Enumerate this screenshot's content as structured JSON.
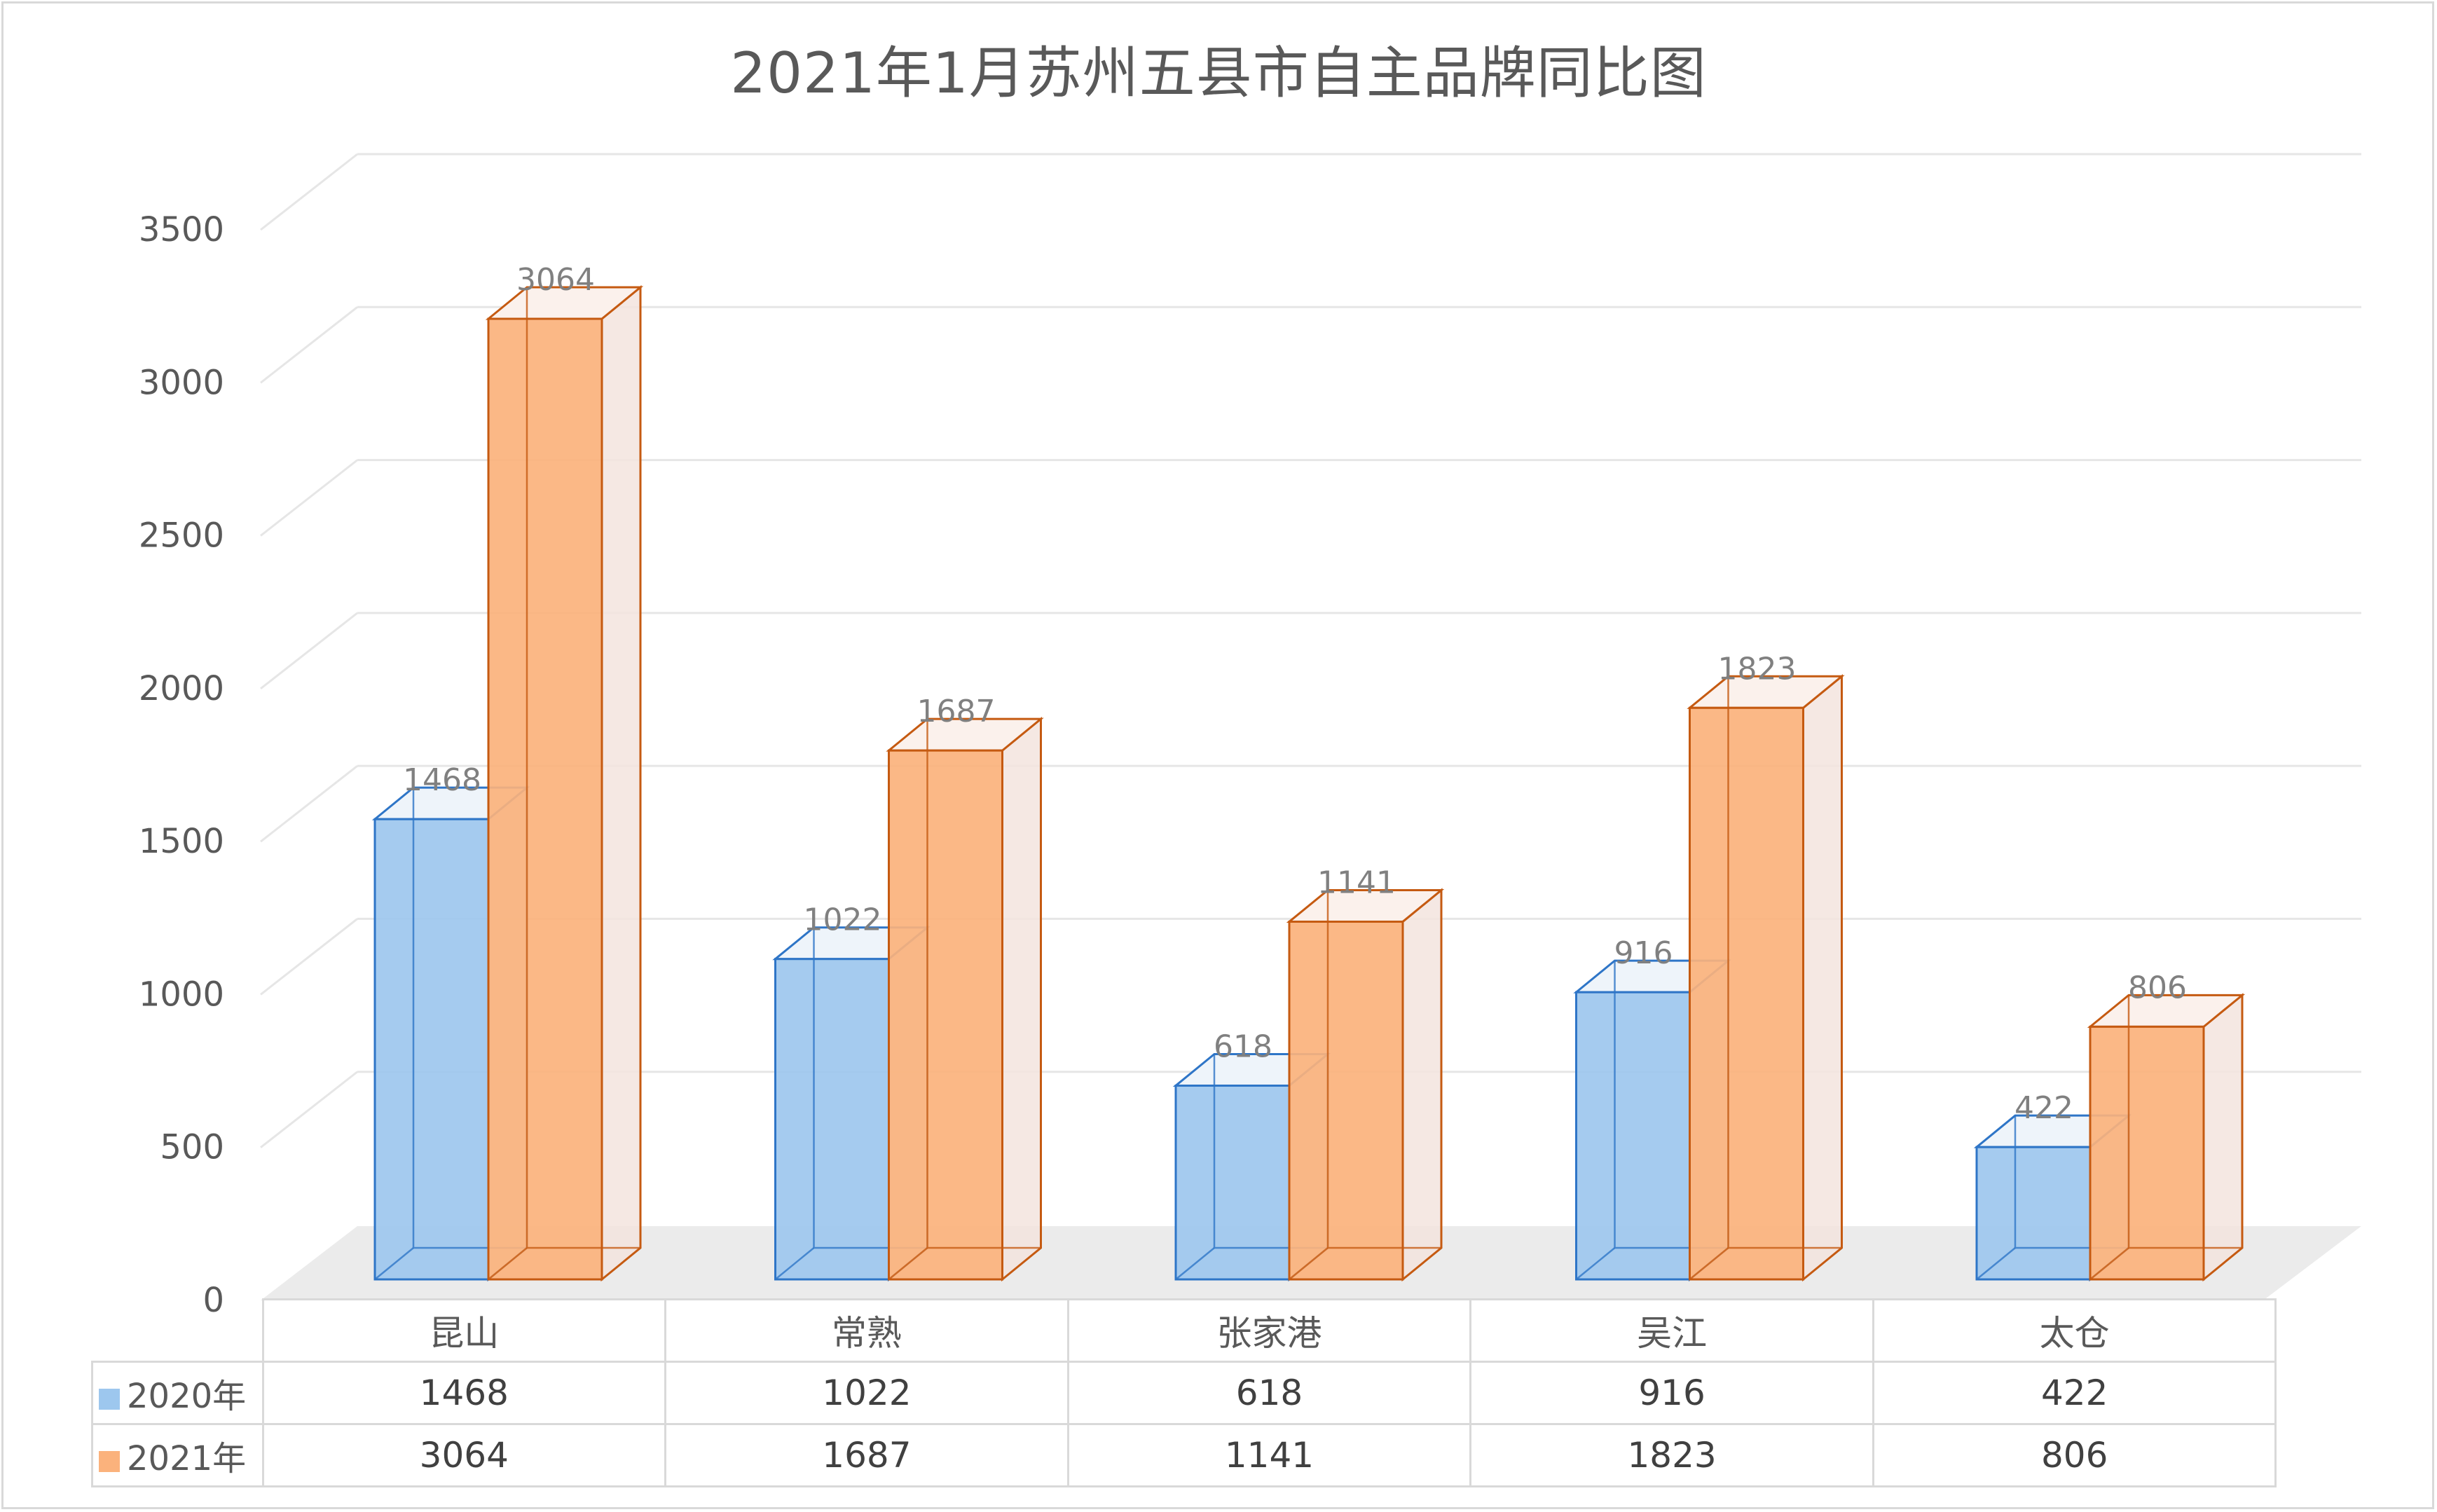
{
  "chart_data": {
    "type": "bar",
    "title": "2021年1月苏州五县市自主品牌同比图",
    "categories": [
      "昆山",
      "常熟",
      "张家港",
      "吴江",
      "太仓"
    ],
    "series": [
      {
        "name": "2020年",
        "values": [
          1468,
          1022,
          618,
          916,
          422
        ],
        "color": "#9dc7ee",
        "edge": "#2e75c7"
      },
      {
        "name": "2021年",
        "values": [
          3064,
          1687,
          1141,
          1823,
          806
        ],
        "color": "#fbb27c",
        "edge": "#c55a11"
      }
    ],
    "ylim": [
      0,
      3500
    ],
    "yticks": [
      0,
      500,
      1000,
      1500,
      2000,
      2500,
      3000,
      3500
    ],
    "grid": true,
    "legend": "data table below chart",
    "style": "3d clustered column"
  }
}
